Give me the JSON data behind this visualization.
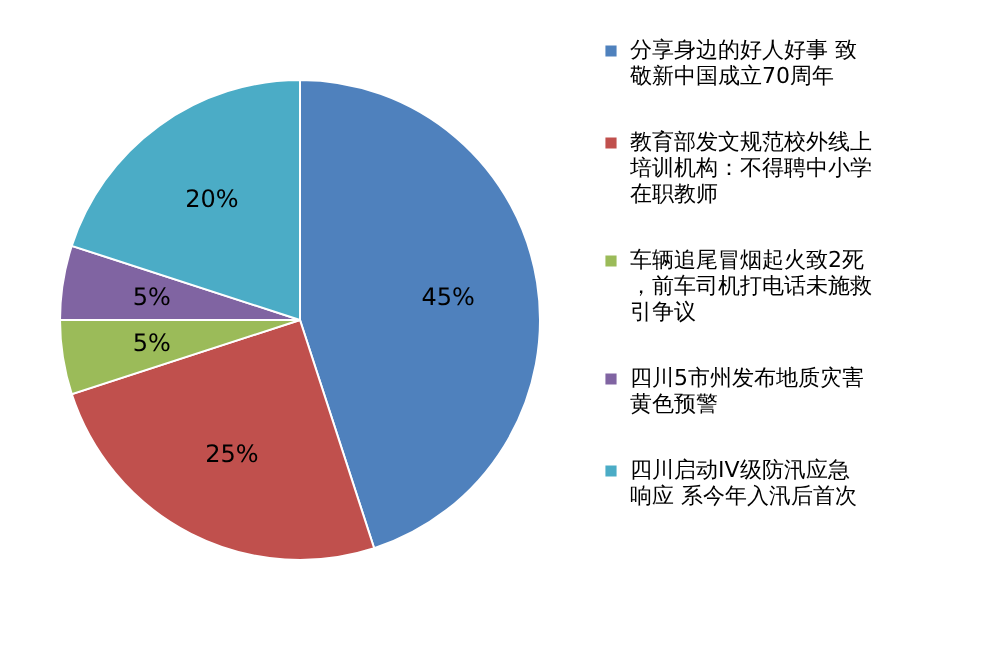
{
  "chart_data": {
    "type": "pie",
    "categories": [
      "分享身边的好人好事 致敬新中国成立70周年",
      "教育部发文规范校外线上培训机构：不得聘中小学在职教师",
      "车辆追尾冒烟起火致2死，前车司机打电话未施救引争议",
      "四川5市州发布地质灾害黄色预警",
      "四川启动IV级防汛应急响应 系今年入汛后首次"
    ],
    "values": [
      45,
      25,
      5,
      5,
      20
    ],
    "colors": [
      "#4f81bd",
      "#c0504d",
      "#9bbb59",
      "#8064a2",
      "#4bacc6"
    ],
    "value_labels": [
      "45%",
      "25%",
      "5%",
      "5%",
      "20%"
    ],
    "legend": "right"
  }
}
